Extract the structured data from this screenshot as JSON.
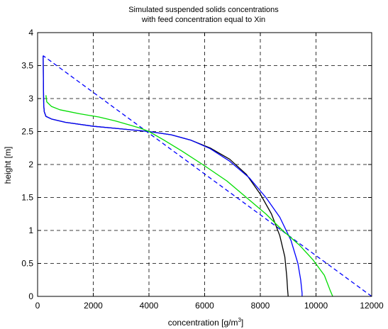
{
  "chart_data": {
    "type": "line",
    "title_lines": [
      "Simulated suspended solids concentrations",
      "with feed concentration equal to Xin"
    ],
    "xlabel_base": "concentration [g/m",
    "xlabel_sup": "3",
    "xlabel_end": "]",
    "ylabel": "height [m]",
    "xlim": [
      0,
      12000
    ],
    "ylim": [
      0,
      4
    ],
    "xticks": [
      0,
      2000,
      4000,
      6000,
      8000,
      10000,
      12000
    ],
    "yticks": [
      0,
      0.5,
      1,
      1.5,
      2,
      2.5,
      3,
      3.5,
      4
    ],
    "grid": true,
    "grid_style": "dashed",
    "series": [
      {
        "color": "#0000ff",
        "line_style": "dashed",
        "points": [
          [
            12000,
            0
          ],
          [
            200,
            3.65
          ]
        ]
      },
      {
        "color": "#000000",
        "line_style": "solid",
        "points": [
          [
            200,
            3.65
          ],
          [
            210,
            3.2
          ],
          [
            220,
            2.9
          ],
          [
            240,
            2.8
          ],
          [
            300,
            2.73
          ],
          [
            500,
            2.69
          ],
          [
            1000,
            2.64
          ],
          [
            2000,
            2.58
          ],
          [
            3000,
            2.54
          ],
          [
            4000,
            2.5
          ],
          [
            4800,
            2.45
          ],
          [
            5500,
            2.37
          ],
          [
            6200,
            2.25
          ],
          [
            6900,
            2.08
          ],
          [
            7500,
            1.85
          ],
          [
            8000,
            1.55
          ],
          [
            8400,
            1.25
          ],
          [
            8700,
            0.92
          ],
          [
            8880,
            0.6
          ],
          [
            8950,
            0.3
          ],
          [
            8980,
            0.1
          ],
          [
            9000,
            0
          ]
        ]
      },
      {
        "color": "#0000ff",
        "line_style": "solid",
        "points": [
          [
            200,
            3.65
          ],
          [
            210,
            3.2
          ],
          [
            220,
            2.9
          ],
          [
            240,
            2.8
          ],
          [
            300,
            2.73
          ],
          [
            500,
            2.69
          ],
          [
            1000,
            2.64
          ],
          [
            2000,
            2.58
          ],
          [
            3000,
            2.54
          ],
          [
            4000,
            2.5
          ],
          [
            4800,
            2.45
          ],
          [
            5500,
            2.37
          ],
          [
            6200,
            2.24
          ],
          [
            6900,
            2.05
          ],
          [
            7600,
            1.8
          ],
          [
            8200,
            1.5
          ],
          [
            8700,
            1.2
          ],
          [
            9100,
            0.85
          ],
          [
            9350,
            0.5
          ],
          [
            9450,
            0.25
          ],
          [
            9500,
            0.05
          ],
          [
            9500,
            0
          ]
        ]
      },
      {
        "color": "#00dd00",
        "line_style": "solid",
        "points": [
          [
            300,
            3.05
          ],
          [
            330,
            2.95
          ],
          [
            500,
            2.88
          ],
          [
            800,
            2.83
          ],
          [
            1500,
            2.77
          ],
          [
            2200,
            2.72
          ],
          [
            2800,
            2.66
          ],
          [
            3300,
            2.6
          ],
          [
            3700,
            2.55
          ],
          [
            4000,
            2.5
          ],
          [
            4500,
            2.38
          ],
          [
            5200,
            2.2
          ],
          [
            6000,
            1.98
          ],
          [
            6800,
            1.75
          ],
          [
            7500,
            1.5
          ],
          [
            8200,
            1.25
          ],
          [
            8800,
            1.0
          ],
          [
            9400,
            0.78
          ],
          [
            9900,
            0.55
          ],
          [
            10300,
            0.32
          ],
          [
            10500,
            0.1
          ],
          [
            10600,
            0
          ]
        ]
      }
    ]
  }
}
